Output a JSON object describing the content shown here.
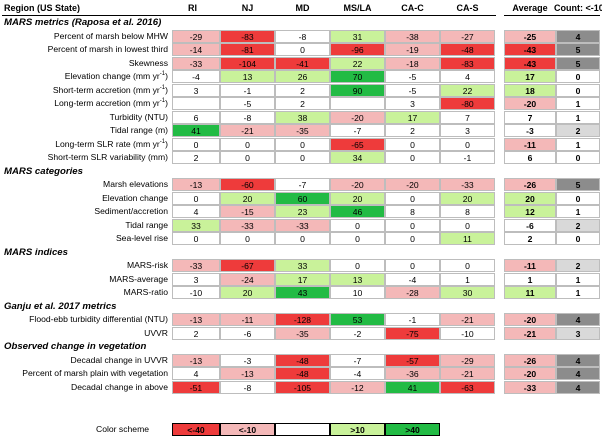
{
  "header": {
    "region": "Region (US State)",
    "columns": [
      "RI",
      "NJ",
      "MD",
      "MS/LA",
      "CA-C",
      "CA-S"
    ],
    "average": "Average",
    "count": "Count: <-10"
  },
  "colors": {
    "dark_red": "#ee3b3b",
    "light_red": "#f4b8b8",
    "neutral": "#ffffff",
    "light_green": "#c9f29a",
    "dark_green": "#22bb44",
    "count_dark": "#8c8c8c",
    "count_light": "#d9d9d9"
  },
  "sections": [
    {
      "title": "MARS metrics (Raposa et al. 2016)",
      "rows": [
        {
          "label": "Percent of marsh below MHW",
          "values": [
            "-29",
            "-83",
            "-8",
            "31",
            "-38",
            "-27"
          ],
          "avg": "-25",
          "count": "4"
        },
        {
          "label": "Percent of marsh in lowest third",
          "values": [
            "-14",
            "-81",
            "0",
            "-96",
            "-19",
            "-48"
          ],
          "avg": "-43",
          "count": "5"
        },
        {
          "label": "Skewness",
          "values": [
            "-33",
            "-104",
            "-41",
            "22",
            "-18",
            "-83"
          ],
          "avg": "-43",
          "count": "5"
        },
        {
          "label": "Elevation change (mm yr",
          "sup": "-1",
          "close": ")",
          "values": [
            "-4",
            "13",
            "26",
            "70",
            "-5",
            "4"
          ],
          "avg": "17",
          "count": "0"
        },
        {
          "label": "Short-term accretion (mm yr",
          "sup": "-1",
          "close": ")",
          "values": [
            "3",
            "-1",
            "2",
            "90",
            "-5",
            "22"
          ],
          "avg": "18",
          "count": "0"
        },
        {
          "label": "Long-term accretion (mm yr",
          "sup": "-1",
          "close": ")",
          "values": [
            "",
            "-5",
            "2",
            "",
            "3",
            "-80"
          ],
          "avg": "-20",
          "count": "1"
        },
        {
          "label": "Turbidity (NTU)",
          "values": [
            "6",
            "-8",
            "38",
            "-20",
            "17",
            "7"
          ],
          "avg": "7",
          "count": "1"
        },
        {
          "label": "Tidal range (m)",
          "values": [
            "41",
            "-21",
            "-35",
            "-7",
            "2",
            "3"
          ],
          "avg": "-3",
          "count": "2"
        },
        {
          "label": "Long-term SLR rate (mm yr",
          "sup": "-1",
          "close": ")",
          "values": [
            "0",
            "0",
            "0",
            "-65",
            "0",
            "0"
          ],
          "avg": "-11",
          "count": "1"
        },
        {
          "label": "Short-term SLR variability (mm)",
          "values": [
            "2",
            "0",
            "0",
            "34",
            "0",
            "-1"
          ],
          "avg": "6",
          "count": "0"
        }
      ]
    },
    {
      "title": "MARS categories",
      "rows": [
        {
          "label": "Marsh elevations",
          "values": [
            "-13",
            "-60",
            "-7",
            "-20",
            "-20",
            "-33"
          ],
          "avg": "-26",
          "count": "5"
        },
        {
          "label": "Elevation change",
          "values": [
            "0",
            "20",
            "60",
            "20",
            "0",
            "20"
          ],
          "avg": "20",
          "count": "0"
        },
        {
          "label": "Sediment/accretion",
          "values": [
            "4",
            "-15",
            "23",
            "46",
            "8",
            "8"
          ],
          "avg": "12",
          "count": "1"
        },
        {
          "label": "Tidal range",
          "values": [
            "33",
            "-33",
            "-33",
            "0",
            "0",
            "0"
          ],
          "avg": "-6",
          "count": "2"
        },
        {
          "label": "Sea-level rise",
          "values": [
            "0",
            "0",
            "0",
            "0",
            "0",
            "11"
          ],
          "avg": "2",
          "count": "0"
        }
      ]
    },
    {
      "title": "MARS indices",
      "rows": [
        {
          "label": "MARS-risk",
          "values": [
            "-33",
            "-67",
            "33",
            "0",
            "0",
            "0"
          ],
          "avg": "-11",
          "count": "2"
        },
        {
          "label": "MARS-average",
          "values": [
            "3",
            "-24",
            "17",
            "13",
            "-4",
            "1"
          ],
          "avg": "1",
          "count": "1"
        },
        {
          "label": "MARS-ratio",
          "values": [
            "-10",
            "20",
            "43",
            "10",
            "-28",
            "30"
          ],
          "avg": "11",
          "count": "1"
        }
      ]
    },
    {
      "title": "Ganju et al. 2017 metrics",
      "rows": [
        {
          "label": "Flood-ebb turbidity differential (NTU)",
          "values": [
            "-13",
            "-11",
            "-128",
            "53",
            "-1",
            "-21"
          ],
          "avg": "-20",
          "count": "4"
        },
        {
          "label": "UVVR",
          "values": [
            "2",
            "-6",
            "-35",
            "-2",
            "-75",
            "-10"
          ],
          "avg": "-21",
          "count": "3"
        }
      ]
    },
    {
      "title": "Observed change in vegetation",
      "rows": [
        {
          "label": "Decadal change in UVVR",
          "values": [
            "-13",
            "-3",
            "-48",
            "-7",
            "-57",
            "-29"
          ],
          "avg": "-26",
          "count": "4"
        },
        {
          "label": "Percent of marsh plain with vegetation",
          "values": [
            "4",
            "-13",
            "-48",
            "-4",
            "-36",
            "-21"
          ],
          "avg": "-20",
          "count": "4"
        },
        {
          "label": "Decadal change in above",
          "values": [
            "-51",
            "-8",
            "-105",
            "-12",
            "41",
            "-63"
          ],
          "avg": "-33",
          "count": "4"
        }
      ]
    }
  ],
  "legend": {
    "label": "Color scheme",
    "items": [
      "<-40",
      "<-10",
      "",
      ">10",
      ">40"
    ]
  }
}
